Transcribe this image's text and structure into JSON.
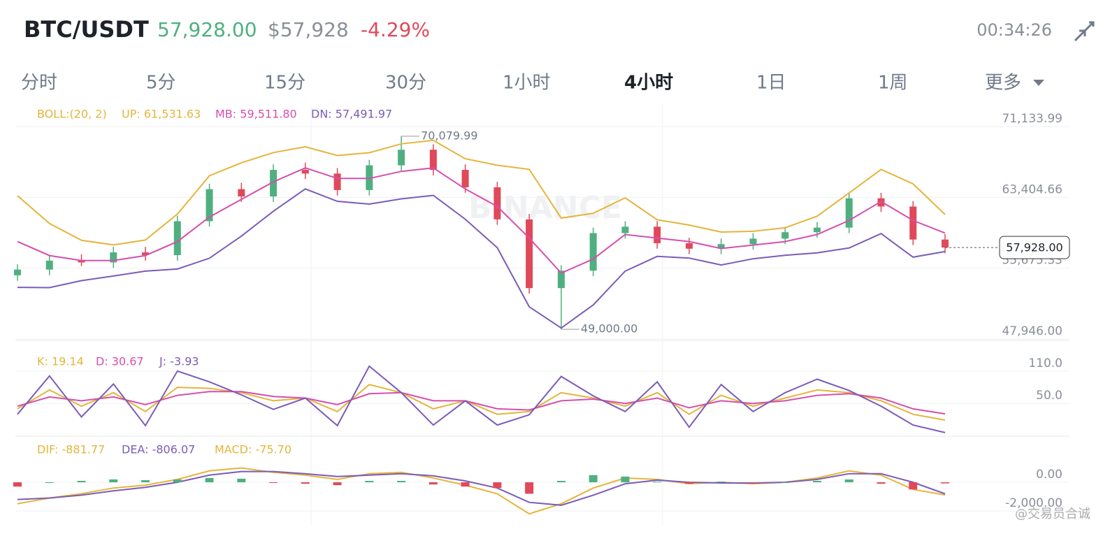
{
  "header": {
    "symbol": "BTC/USDT",
    "price": "57,928.00",
    "price_usd": "$57,928",
    "change": "-4.29%",
    "countdown": "00:34:26"
  },
  "tabs": [
    "分时",
    "5分",
    "15分",
    "30分",
    "1小时",
    "4小时",
    "1日",
    "1周",
    "更多"
  ],
  "active_tab": "4小时",
  "watermark": "BINANCE",
  "credit": "@交易员合诚",
  "chart_data": [
    {
      "type": "candlestick",
      "indicator": "BOLL:(20, 2)",
      "open": [
        54900,
        55520,
        56500,
        56300,
        57400,
        57100,
        60800,
        64300,
        63500,
        66400,
        66000,
        64200,
        66900,
        68600,
        66400,
        64500,
        61000,
        53500,
        55400,
        59500,
        60200,
        58400,
        57800,
        58300,
        58900,
        59600,
        60100,
        63300,
        62400,
        58800
      ],
      "high": [
        56100,
        57100,
        57200,
        58000,
        58000,
        61400,
        64900,
        65000,
        67000,
        67200,
        66600,
        67500,
        70079.99,
        69200,
        67000,
        65100,
        61600,
        56000,
        60100,
        60800,
        60800,
        59000,
        58900,
        59500,
        60200,
        60700,
        63900,
        63900,
        63000,
        59400
      ],
      "low": [
        54300,
        54900,
        55900,
        55700,
        56500,
        56500,
        60200,
        62900,
        62900,
        65400,
        63600,
        63600,
        66300,
        65800,
        63900,
        60400,
        52900,
        49000,
        54800,
        58900,
        57800,
        57200,
        57200,
        57700,
        58300,
        59000,
        59500,
        61800,
        58200,
        57300
      ],
      "close": [
        55520,
        56500,
        56300,
        57400,
        57100,
        60800,
        64300,
        63500,
        66400,
        66000,
        64200,
        66900,
        68600,
        66400,
        64500,
        61000,
        53500,
        55400,
        59500,
        60200,
        58400,
        57800,
        58300,
        58900,
        59600,
        60100,
        63300,
        62400,
        58800,
        57928
      ],
      "up_color": "#4fb07f",
      "down_color": "#e0495a",
      "series": [
        {
          "name": "UP: 61,531.63",
          "color": "#e5b53b",
          "values": [
            63580,
            60550,
            58715,
            58215,
            58750,
            61580,
            65760,
            67175,
            68290,
            68920,
            67970,
            68270,
            69240,
            69620,
            67620,
            66910,
            66460,
            61140,
            61670,
            63350,
            60960,
            60380,
            59620,
            59700,
            60080,
            61350,
            63880,
            66450,
            64880,
            61531.63
          ]
        },
        {
          "name": "MB: 59,511.80",
          "color": "#d64fae",
          "values": [
            58580,
            57050,
            56515,
            56515,
            57050,
            58580,
            61260,
            63175,
            65090,
            66620,
            65470,
            65470,
            66240,
            66620,
            64320,
            62410,
            58960,
            55140,
            56670,
            59350,
            58960,
            58580,
            57820,
            58200,
            58580,
            59350,
            60880,
            62950,
            60880,
            59511.8
          ]
        },
        {
          "name": "DN: 57,491.97",
          "color": "#7b5cb8",
          "values": [
            53580,
            53550,
            54315,
            54815,
            55350,
            55580,
            56760,
            59175,
            61890,
            64320,
            62970,
            62670,
            63240,
            63620,
            61020,
            57910,
            51460,
            49140,
            51670,
            55350,
            56960,
            56780,
            56020,
            56700,
            57080,
            57350,
            57880,
            59450,
            56880,
            57491.97
          ]
        }
      ],
      "max_label": {
        "value": 70079.99,
        "label": "70,079.99"
      },
      "min_label": {
        "value": 49000.0,
        "label": "49,000.00"
      },
      "last_price": {
        "value": 57928,
        "label": "57,928.00"
      },
      "ylim": [
        47946,
        71133.99
      ],
      "yticks": [
        {
          "value": 71133.99,
          "label": "71,133.99"
        },
        {
          "value": 63404.66,
          "label": "63,404.66"
        },
        {
          "value": 55675.33,
          "label": "55,675.33"
        },
        {
          "value": 47946,
          "label": "47,946.00"
        }
      ]
    },
    {
      "type": "line",
      "series": [
        {
          "name": "K: 19.14",
          "color": "#e5b53b",
          "values": [
            40,
            75,
            45,
            70,
            35,
            80,
            78,
            70,
            55,
            60,
            35,
            85,
            70,
            40,
            55,
            30,
            35,
            70,
            60,
            45,
            70,
            30,
            65,
            45,
            60,
            75,
            70,
            55,
            30,
            19.14
          ]
        },
        {
          "name": "D: 30.67",
          "color": "#d64fae",
          "values": [
            45,
            62,
            55,
            62,
            48,
            65,
            72,
            72,
            63,
            60,
            48,
            68,
            70,
            55,
            55,
            40,
            38,
            55,
            58,
            50,
            60,
            42,
            55,
            50,
            55,
            65,
            68,
            60,
            40,
            30.67
          ]
        },
        {
          "name": "J: -3.93",
          "color": "#7b5cb8",
          "values": [
            30,
            101,
            25,
            86,
            9,
            110,
            90,
            66,
            39,
            60,
            9,
            119,
            70,
            10,
            55,
            10,
            29,
            100,
            64,
            35,
            90,
            6,
            85,
            35,
            70,
            95,
            74,
            45,
            10,
            -3.93
          ]
        }
      ],
      "ylim": [
        -8,
        150
      ],
      "yticks": [
        {
          "value": 110,
          "label": "110.0"
        },
        {
          "value": 50,
          "label": "50.0"
        }
      ]
    },
    {
      "type": "line",
      "series": [
        {
          "name": "DIF: -881.77",
          "color": "#e5b53b",
          "values": [
            -1500,
            -1100,
            -800,
            -400,
            -200,
            200,
            800,
            1000,
            700,
            500,
            200,
            600,
            700,
            300,
            -200,
            -800,
            -2200,
            -1500,
            -400,
            300,
            200,
            -100,
            0,
            -100,
            0,
            300,
            800,
            500,
            -500,
            -881.77
          ]
        },
        {
          "name": "DEA: -806.07",
          "color": "#7b5cb8",
          "values": [
            -1200,
            -1100,
            -900,
            -600,
            -350,
            0,
            500,
            750,
            750,
            600,
            400,
            500,
            600,
            450,
            100,
            -400,
            -1400,
            -1600,
            -900,
            -100,
            150,
            0,
            -50,
            -50,
            0,
            200,
            600,
            600,
            0,
            -806.07
          ]
        },
        {
          "name": "MACD: -75.70",
          "color": "#e5b53b",
          "type": "bar",
          "up_color": "#4fb07f",
          "down_color": "#e0495a",
          "values": [
            -300,
            0,
            100,
            200,
            150,
            200,
            300,
            250,
            -50,
            -100,
            -200,
            100,
            100,
            -150,
            -300,
            -400,
            -800,
            100,
            500,
            400,
            50,
            -100,
            50,
            -50,
            0,
            100,
            200,
            -100,
            -500,
            -75.7
          ]
        }
      ],
      "ylim": [
        -3025,
        2830
      ],
      "yticks": [
        {
          "value": 0,
          "label": "0.00"
        },
        {
          "value": -2000,
          "label": "-2,000.00"
        }
      ]
    }
  ]
}
